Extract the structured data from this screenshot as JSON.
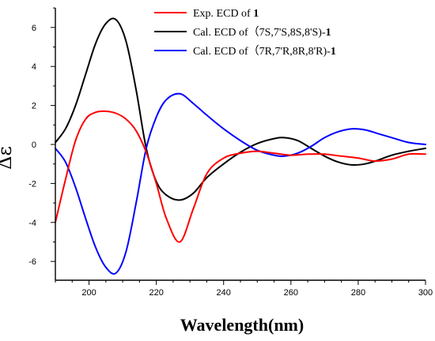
{
  "chart_data": {
    "type": "line",
    "title": "",
    "xlabel": "Wavelength(nm)",
    "ylabel": "Δε",
    "xlim": [
      190,
      300
    ],
    "ylim": [
      -7,
      7
    ],
    "x_ticks": [
      200,
      220,
      240,
      260,
      280,
      300
    ],
    "y_ticks": [
      -6,
      -4,
      -2,
      0,
      2,
      4,
      6
    ],
    "grid": false,
    "legend_position": "top-right",
    "series": [
      {
        "name": "Exp. ECD of 1",
        "color": "#ff0000",
        "legend": {
          "text": "Exp. ECD of ",
          "bold": "1",
          "tail": ""
        },
        "x": [
          190,
          193,
          196,
          199,
          202,
          205,
          208,
          211,
          214,
          217,
          220,
          223,
          227,
          231,
          235,
          240,
          245,
          250,
          255,
          260,
          265,
          270,
          275,
          280,
          285,
          290,
          295,
          300
        ],
        "y": [
          -4.0,
          -1.8,
          0.2,
          1.3,
          1.65,
          1.7,
          1.6,
          1.3,
          0.7,
          -0.4,
          -2.0,
          -3.8,
          -5.0,
          -3.3,
          -1.5,
          -0.7,
          -0.45,
          -0.35,
          -0.45,
          -0.55,
          -0.5,
          -0.5,
          -0.6,
          -0.7,
          -0.85,
          -0.75,
          -0.5,
          -0.5
        ]
      },
      {
        "name": "Cal. ECD of (7S,7'S,8S,8'S)-1",
        "color": "#000000",
        "legend": {
          "text": "Cal. ECD of（7S,7'S,8S,8'S)-",
          "bold": "1",
          "tail": ""
        },
        "x": [
          190,
          193,
          196,
          199,
          202,
          205,
          208,
          211,
          214,
          217,
          220,
          223,
          227,
          231,
          235,
          240,
          245,
          250,
          255,
          258,
          262,
          266,
          270,
          274,
          278,
          282,
          286,
          290,
          295,
          300
        ],
        "y": [
          0.1,
          0.8,
          2.0,
          3.6,
          5.2,
          6.2,
          6.4,
          5.3,
          2.8,
          -0.2,
          -1.9,
          -2.6,
          -2.85,
          -2.5,
          -1.7,
          -1.0,
          -0.4,
          0.05,
          0.3,
          0.35,
          0.2,
          -0.2,
          -0.6,
          -0.9,
          -1.05,
          -1.0,
          -0.8,
          -0.55,
          -0.35,
          -0.2
        ]
      },
      {
        "name": "Cal. ECD of (7R,7'R,8R,8'R)-1",
        "color": "#0000ff",
        "legend": {
          "text": "Cal. ECD of（7R,7'R,8R,8'R)-",
          "bold": "1",
          "tail": ""
        },
        "x": [
          190,
          193,
          196,
          199,
          202,
          205,
          208,
          211,
          214,
          217,
          220,
          223,
          227,
          231,
          235,
          240,
          245,
          250,
          255,
          258,
          262,
          266,
          270,
          274,
          278,
          282,
          286,
          290,
          295,
          300
        ],
        "y": [
          -0.2,
          -0.9,
          -2.2,
          -3.8,
          -5.3,
          -6.3,
          -6.6,
          -5.5,
          -3.0,
          -0.2,
          1.4,
          2.3,
          2.6,
          2.1,
          1.5,
          0.8,
          0.2,
          -0.3,
          -0.55,
          -0.6,
          -0.45,
          -0.1,
          0.35,
          0.65,
          0.8,
          0.75,
          0.55,
          0.35,
          0.1,
          0.0
        ]
      }
    ]
  }
}
